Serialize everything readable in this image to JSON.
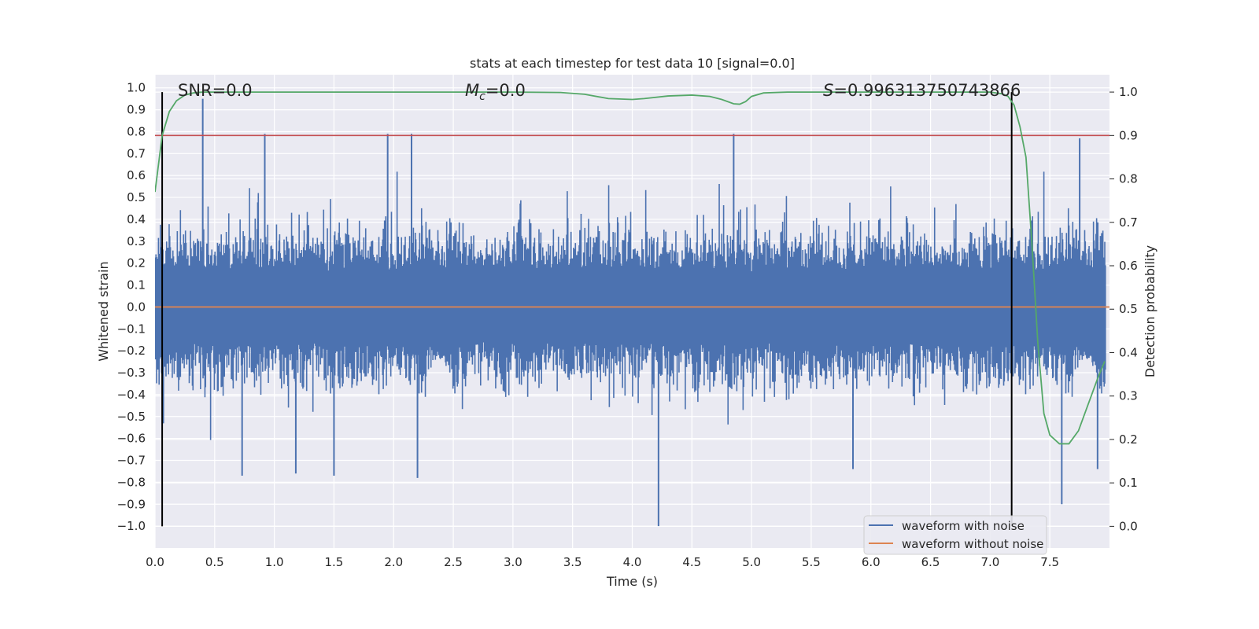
{
  "chart_data": {
    "type": "line",
    "title": "stats at each timestep for test data 10 [signal=0.0]",
    "xlabel": "Time (s)",
    "ylabel": "Whitened strain",
    "y2label": "Detection probability",
    "xlim": [
      0.0,
      8.0
    ],
    "ylim": [
      -1.1,
      1.06
    ],
    "y2lim": [
      -0.05,
      1.04
    ],
    "xticks": [
      "0.0",
      "0.5",
      "1.0",
      "1.5",
      "2.0",
      "2.5",
      "3.0",
      "3.5",
      "4.0",
      "4.5",
      "5.0",
      "5.5",
      "6.0",
      "6.5",
      "7.0",
      "7.5"
    ],
    "xtick_values": [
      0.0,
      0.5,
      1.0,
      1.5,
      2.0,
      2.5,
      3.0,
      3.5,
      4.0,
      4.5,
      5.0,
      5.5,
      6.0,
      6.5,
      7.0,
      7.5
    ],
    "yticks": [
      "1.0",
      "0.9",
      "0.8",
      "0.7",
      "0.6",
      "0.5",
      "0.4",
      "0.3",
      "0.2",
      "0.1",
      "0.0",
      "−0.1",
      "−0.2",
      "−0.3",
      "−0.4",
      "−0.5",
      "−0.6",
      "−0.7",
      "−0.8",
      "−0.9",
      "−1.0"
    ],
    "ytick_values": [
      1.0,
      0.9,
      0.8,
      0.7,
      0.6,
      0.5,
      0.4,
      0.3,
      0.2,
      0.1,
      0.0,
      -0.1,
      -0.2,
      -0.3,
      -0.4,
      -0.5,
      -0.6,
      -0.7,
      -0.8,
      -0.9,
      -1.0
    ],
    "y2ticks": [
      "1.0",
      "0.9",
      "0.8",
      "0.7",
      "0.6",
      "0.5",
      "0.4",
      "0.3",
      "0.2",
      "0.1",
      "0.0"
    ],
    "y2tick_values": [
      1.0,
      0.9,
      0.8,
      0.7,
      0.6,
      0.5,
      0.4,
      0.3,
      0.2,
      0.1,
      0.0
    ],
    "annotations": {
      "snr": "SNR=0.0",
      "mc_symbol": "M",
      "mc_sub": "c",
      "mc_value": "=0.0",
      "s_symbol": "S",
      "s_value": "=0.996313750743866"
    },
    "vlines": [
      0.06,
      7.18
    ],
    "threshold": 0.9,
    "series": [
      {
        "name": "waveform with noise",
        "color": "#4c72b0",
        "kind": "noise",
        "peaks": [
          {
            "x": 0.4,
            "y": 0.95
          },
          {
            "x": 0.92,
            "y": 0.79
          },
          {
            "x": 1.95,
            "y": 0.79
          },
          {
            "x": 2.15,
            "y": 0.79
          },
          {
            "x": 7.75,
            "y": 0.77
          },
          {
            "x": 4.85,
            "y": 0.79
          },
          {
            "x": 0.73,
            "y": -0.77
          },
          {
            "x": 1.5,
            "y": -0.77
          },
          {
            "x": 2.2,
            "y": -0.78
          },
          {
            "x": 4.22,
            "y": -1.0
          },
          {
            "x": 7.6,
            "y": -0.9
          },
          {
            "x": 7.9,
            "y": -0.74
          },
          {
            "x": 5.85,
            "y": -0.74
          },
          {
            "x": 1.18,
            "y": -0.76
          }
        ]
      },
      {
        "name": "waveform without noise",
        "color": "#dd8452",
        "x": [
          0.0,
          8.0
        ],
        "y": [
          0.0,
          0.0
        ]
      },
      {
        "name": "detection probability",
        "color": "#55a868",
        "axis": "right",
        "x": [
          0.0,
          0.06,
          0.12,
          0.18,
          0.25,
          0.32,
          0.4,
          0.6,
          1.0,
          2.0,
          3.0,
          3.4,
          3.6,
          3.8,
          4.0,
          4.1,
          4.3,
          4.5,
          4.65,
          4.75,
          4.85,
          4.9,
          4.95,
          5.0,
          5.1,
          5.3,
          6.0,
          7.0,
          7.1,
          7.15,
          7.2,
          7.25,
          7.3,
          7.35,
          7.4,
          7.45,
          7.5,
          7.58,
          7.66,
          7.74,
          7.82,
          7.9,
          7.96
        ],
        "y": [
          0.77,
          0.9,
          0.955,
          0.98,
          0.993,
          0.998,
          1.0,
          1.0,
          1.0,
          1.0,
          1.0,
          0.999,
          0.995,
          0.985,
          0.983,
          0.985,
          0.991,
          0.993,
          0.99,
          0.983,
          0.973,
          0.972,
          0.978,
          0.99,
          0.998,
          1.0,
          1.0,
          1.0,
          0.996,
          0.99,
          0.97,
          0.92,
          0.85,
          0.65,
          0.42,
          0.26,
          0.21,
          0.19,
          0.19,
          0.22,
          0.28,
          0.34,
          0.38
        ]
      }
    ],
    "legend": {
      "position": "lower-right",
      "entries": [
        {
          "label": "waveform with noise",
          "color": "#4c72b0"
        },
        {
          "label": "waveform without noise",
          "color": "#dd8452"
        }
      ]
    },
    "colors": {
      "plot_bg": "#eaeaf2",
      "grid": "#ffffff",
      "threshold": "#c44e52",
      "vline": "#000000"
    }
  }
}
